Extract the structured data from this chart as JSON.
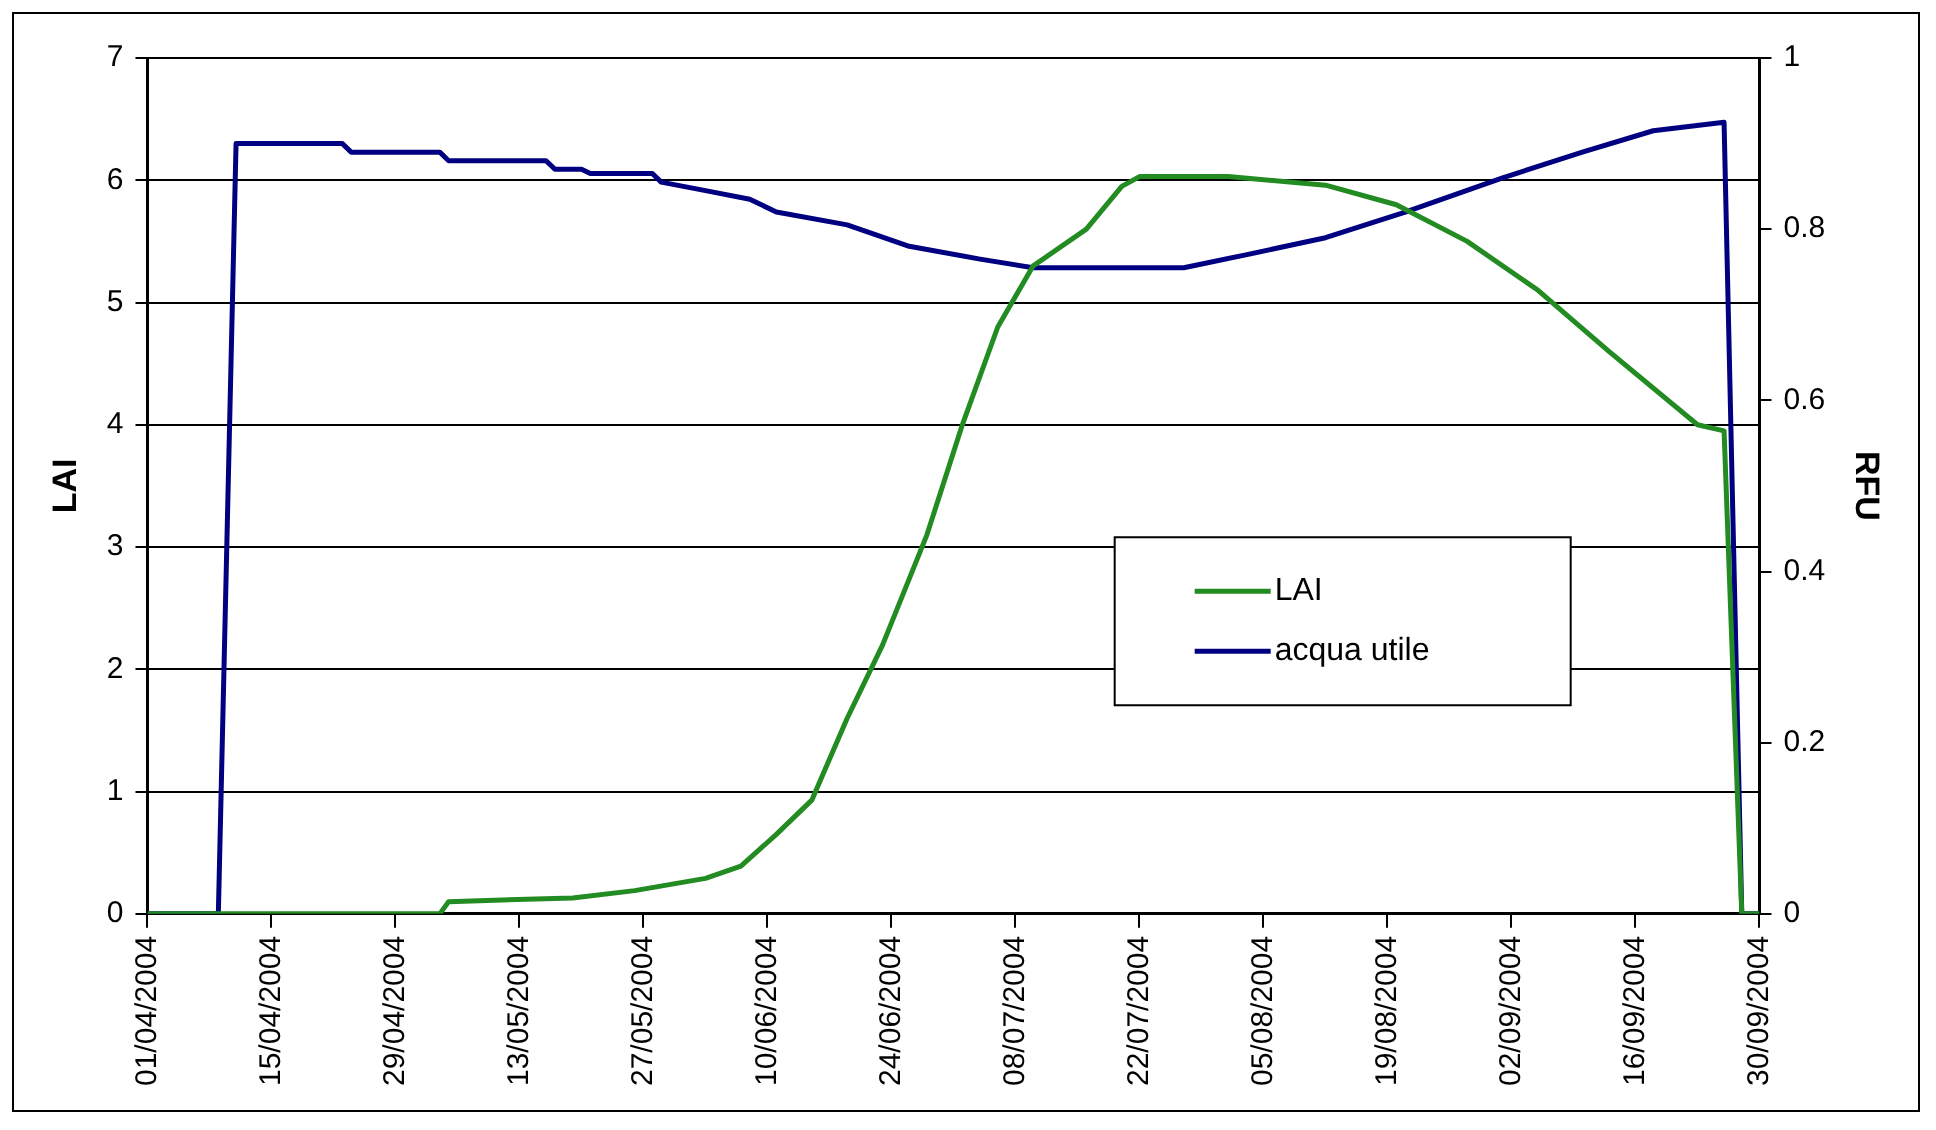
{
  "chart_data": {
    "type": "line",
    "ylabel": "LAI",
    "y2label": "RFU",
    "xlim": [
      "2004-04-01",
      "2004-09-30"
    ],
    "xticks": [
      {
        "value": "2004-04-01",
        "label": "01/04/2004"
      },
      {
        "value": "2004-04-15",
        "label": "15/04/2004"
      },
      {
        "value": "2004-04-29",
        "label": "29/04/2004"
      },
      {
        "value": "2004-05-13",
        "label": "13/05/2004"
      },
      {
        "value": "2004-05-27",
        "label": "27/05/2004"
      },
      {
        "value": "2004-06-10",
        "label": "10/06/2004"
      },
      {
        "value": "2004-06-24",
        "label": "24/06/2004"
      },
      {
        "value": "2004-07-08",
        "label": "08/07/2004"
      },
      {
        "value": "2004-07-22",
        "label": "22/07/2004"
      },
      {
        "value": "2004-08-05",
        "label": "05/08/2004"
      },
      {
        "value": "2004-08-19",
        "label": "19/08/2004"
      },
      {
        "value": "2004-09-02",
        "label": "02/09/2004"
      },
      {
        "value": "2004-09-16",
        "label": "16/09/2004"
      },
      {
        "value": "2004-09-30",
        "label": "30/09/2004"
      }
    ],
    "ylim": [
      0,
      7
    ],
    "yticks": [
      0,
      1,
      2,
      3,
      4,
      5,
      6,
      7
    ],
    "y2lim": [
      0,
      1
    ],
    "y2ticks": [
      0,
      0.2,
      0.4,
      0.6,
      0.8,
      1
    ],
    "grid": "y",
    "legend": "right",
    "marker": "none",
    "line_style": "solid",
    "series": [
      {
        "name": "LAI",
        "color": "#228b22",
        "x": [
          "2004-04-01",
          "2004-05-04",
          "2004-05-05",
          "2004-05-19",
          "2004-05-26",
          "2004-06-03",
          "2004-06-07",
          "2004-06-11",
          "2004-06-15",
          "2004-06-19",
          "2004-06-23",
          "2004-06-28",
          "2004-07-02",
          "2004-07-06",
          "2004-07-10",
          "2004-07-16",
          "2004-07-20",
          "2004-07-22",
          "2004-08-01",
          "2004-08-12",
          "2004-08-20",
          "2004-08-28",
          "2004-09-05",
          "2004-09-13",
          "2004-09-23",
          "2004-09-26",
          "2004-09-28",
          "2004-09-30"
        ],
        "values": [
          0,
          0,
          0.1,
          0.13,
          0.19,
          0.29,
          0.39,
          0.65,
          0.93,
          1.6,
          2.2,
          3.1,
          4.0,
          4.8,
          5.3,
          5.6,
          5.95,
          6.03,
          6.03,
          5.96,
          5.8,
          5.5,
          5.1,
          4.6,
          4.0,
          3.95,
          0,
          0
        ]
      },
      {
        "name": "acqua utile",
        "color": "#000080",
        "axis": "y2",
        "x": [
          "2004-04-01",
          "2004-04-09",
          "2004-04-11",
          "2004-04-23",
          "2004-04-24",
          "2004-05-04",
          "2004-05-05",
          "2004-05-16",
          "2004-05-17",
          "2004-05-20",
          "2004-05-21",
          "2004-05-28",
          "2004-05-29",
          "2004-06-03",
          "2004-06-08",
          "2004-06-11",
          "2004-06-19",
          "2004-06-26",
          "2004-07-04",
          "2004-07-10",
          "2004-07-27",
          "2004-08-03",
          "2004-08-12",
          "2004-08-21",
          "2004-09-01",
          "2004-09-10",
          "2004-09-18",
          "2004-09-26",
          "2004-09-28",
          "2004-09-30"
        ],
        "values": [
          0,
          0,
          0.9,
          0.9,
          0.89,
          0.89,
          0.88,
          0.88,
          0.87,
          0.87,
          0.865,
          0.865,
          0.855,
          0.845,
          0.835,
          0.82,
          0.805,
          0.78,
          0.765,
          0.755,
          0.755,
          0.77,
          0.79,
          0.82,
          0.86,
          0.89,
          0.915,
          0.925,
          0,
          0
        ]
      }
    ]
  }
}
